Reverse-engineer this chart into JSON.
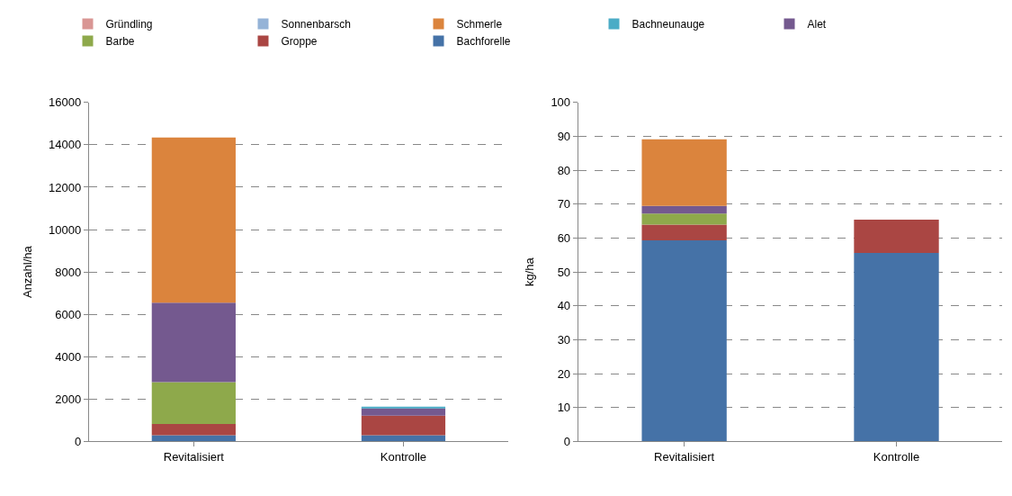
{
  "chart_data": [
    {
      "type": "bar",
      "stacked": true,
      "ylabel": "Anzahl/ha",
      "categories": [
        "Revitalisiert",
        "Kontrolle"
      ],
      "ylim": [
        0,
        16000
      ],
      "yticks": [
        0,
        2000,
        4000,
        6000,
        8000,
        10000,
        12000,
        14000,
        16000
      ],
      "grid": "y",
      "legend": "top",
      "series": [
        {
          "name": "Bachforelle",
          "color": "#4572a7",
          "values": [
            300,
            300
          ]
        },
        {
          "name": "Groppe",
          "color": "#aa4643",
          "values": [
            530,
            920
          ]
        },
        {
          "name": "Barbe",
          "color": "#8ea94b",
          "values": [
            1970,
            0
          ]
        },
        {
          "name": "Alet",
          "color": "#74598f",
          "values": [
            3750,
            350
          ]
        },
        {
          "name": "Bachneunauge",
          "color": "#4bacc6",
          "values": [
            0,
            60
          ]
        },
        {
          "name": "Schmerle",
          "color": "#db843d",
          "values": [
            7800,
            0
          ]
        },
        {
          "name": "Sonnenbarsch",
          "color": "#95b3d7",
          "values": [
            0,
            0
          ]
        },
        {
          "name": "Gründling",
          "color": "#d99694",
          "values": [
            0,
            0
          ]
        }
      ]
    },
    {
      "type": "bar",
      "stacked": true,
      "ylabel": "kg/ha",
      "categories": [
        "Revitalisiert",
        "Kontrolle"
      ],
      "ylim": [
        0,
        100
      ],
      "yticks": [
        0,
        10,
        20,
        30,
        40,
        50,
        60,
        70,
        80,
        90,
        100
      ],
      "grid": "y",
      "series": [
        {
          "color": "#4572a7",
          "values": [
            59.3,
            55.6
          ]
        },
        {
          "color": "#aa4643",
          "values": [
            4.7,
            9.8
          ]
        },
        {
          "color": "#8ea94b",
          "values": [
            3.2,
            0
          ]
        },
        {
          "color": "#74598f",
          "values": [
            2.3,
            0
          ]
        },
        {
          "color": "#db843d",
          "values": [
            19.6,
            0
          ]
        }
      ]
    }
  ]
}
